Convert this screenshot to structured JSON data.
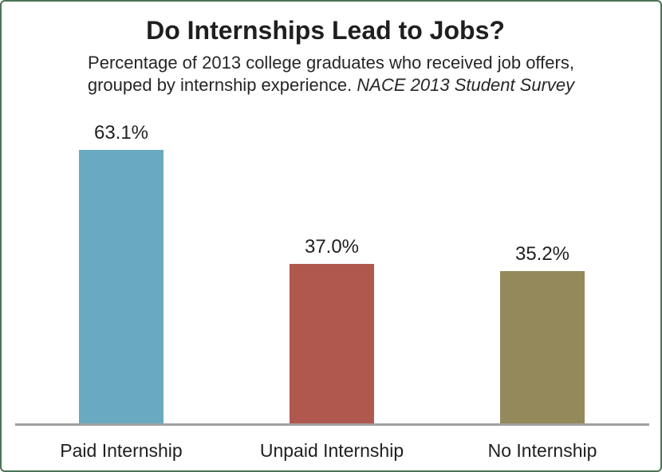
{
  "chart_data": {
    "type": "bar",
    "title": "Do Internships Lead to Jobs?",
    "subtitle_line1": "Percentage of 2013 college graduates who received job offers,",
    "subtitle_line2_regular": "grouped by internship experience.",
    "subtitle_line2_italic": "NACE 2013 Student Survey",
    "categories": [
      "Paid Internship",
      "Unpaid Internship",
      "No Internship"
    ],
    "values": [
      63.1,
      37.0,
      35.2
    ],
    "value_labels": [
      "63.1%",
      "37.0%",
      "35.2%"
    ],
    "bar_colors": [
      "#69aac1",
      "#b0574e",
      "#93895a"
    ],
    "xlabel": "",
    "ylabel": "",
    "ylim": [
      0,
      70
    ],
    "grid": false,
    "legend": "none",
    "axis_line_color": "#a0a0a0",
    "text_color": "#1f1f1f",
    "frame_border_color": "#4a7356"
  }
}
